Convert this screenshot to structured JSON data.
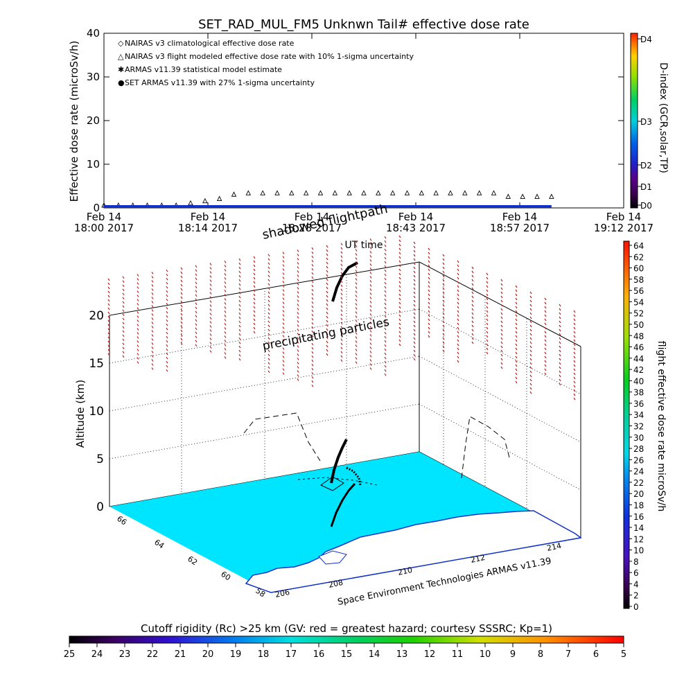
{
  "header": {
    "title": "SET_RAD_MUL_FM5 Unknwn Tail#  effective dose rate"
  },
  "top_chart": {
    "ylabel": "Effective dose rate (microSv/h)",
    "yticks": [
      "0",
      "10",
      "20",
      "30",
      "40"
    ],
    "xticks": [
      {
        "date": "Feb 14",
        "time": "18:00 2017"
      },
      {
        "date": "Feb 14",
        "time": "18:14 2017"
      },
      {
        "date": "Feb 14",
        "time": "18:28 2017"
      },
      {
        "date": "Feb 14",
        "time": "18:43 2017"
      },
      {
        "date": "Feb 14",
        "time": "18:57 2017"
      },
      {
        "date": "Feb 14",
        "time": "19:12 2017"
      }
    ],
    "legend": [
      {
        "symbol": "◇",
        "color": "#c0392b",
        "text": "NAIRAS v3 climatological effective dose rate"
      },
      {
        "symbol": "△",
        "color": "#000000",
        "text": "NAIRAS v3 flight modeled effective dose rate with 10% 1-sigma uncertainty"
      },
      {
        "symbol": "✱",
        "color": "#22c022",
        "text": "ARMAS v11.39 statistical model estimate"
      },
      {
        "symbol": "●",
        "color": "#1030c8",
        "text": "SET ARMAS v11.39 with 27% 1-sigma uncertainty"
      }
    ],
    "right_colorbar": {
      "label": "D-index (GCR,solar,TP)",
      "ticks": [
        "D4",
        "D3",
        "D2",
        "D1",
        "D0"
      ]
    }
  },
  "chart_data": [
    {
      "type": "scatter",
      "title": "SET_RAD_MUL_FM5 Unknwn Tail#  effective dose rate",
      "xlabel": "",
      "ylabel": "Effective dose rate (microSv/h)",
      "x_range": [
        "Feb 14 18:00 2017",
        "Feb 14 19:12 2017"
      ],
      "ylim": [
        0,
        40
      ],
      "series": [
        {
          "name": "NAIRAS v3 flight modeled effective dose rate with 10% 1-sigma uncertainty",
          "x_minutes": [
            0,
            2,
            4,
            6,
            8,
            10,
            12,
            14,
            16,
            18,
            20,
            22,
            24,
            26,
            28,
            30,
            32,
            34,
            36,
            38,
            40,
            42,
            44,
            46,
            48,
            50,
            52,
            54,
            56,
            58,
            60,
            62
          ],
          "values": [
            0,
            0,
            0,
            0,
            0,
            0,
            0.5,
            1,
            1.5,
            2.5,
            2.8,
            2.8,
            2.8,
            2.8,
            2.8,
            2.8,
            2.8,
            2.8,
            2.8,
            2.8,
            2.8,
            2.8,
            2.8,
            2.8,
            2.8,
            2.8,
            2.8,
            2.8,
            2,
            2,
            2,
            2
          ]
        },
        {
          "name": "SET ARMAS v11.39 with 27% 1-sigma uncertainty",
          "x_minutes": [
            0,
            62
          ],
          "values": [
            0,
            0
          ]
        }
      ]
    },
    {
      "type": "scatter",
      "title": "",
      "zlabel": "Altitude (km)",
      "zticks": [
        "0",
        "5",
        "10",
        "15",
        "20"
      ],
      "x_ticks": [
        "206",
        "208",
        "210",
        "212",
        "214"
      ],
      "y_ticks": [
        "58",
        "60",
        "62",
        "64",
        "66"
      ],
      "annotations": [
        "shadowed flightpath",
        "UT time",
        "precipitating particles"
      ]
    }
  ],
  "bottom_chart": {
    "ylabel": "Altitude (km)",
    "zticks": [
      "0",
      "5",
      "10",
      "15",
      "20"
    ],
    "xticks": [
      "206",
      "208",
      "210",
      "212",
      "214"
    ],
    "yticks": [
      "58",
      "60",
      "62",
      "64",
      "66"
    ],
    "annot_shadowed": "shadowed flightpath",
    "annot_ut": "UT time",
    "annot_precip": "precipitating particles",
    "credit": "Space Environment Technologies ARMAS v11.39",
    "right_colorbar": {
      "label": "flight effective dose rate microSv/h",
      "ticks": [
        "64",
        "62",
        "60",
        "58",
        "56",
        "54",
        "52",
        "50",
        "48",
        "46",
        "44",
        "42",
        "40",
        "38",
        "36",
        "34",
        "32",
        "30",
        "28",
        "26",
        "24",
        "22",
        "20",
        "18",
        "16",
        "14",
        "12",
        "10",
        "8",
        "6",
        "4",
        "2",
        "0"
      ]
    }
  },
  "cutoff_bar": {
    "title": "Cutoff rigidity (Rc) >25 km (GV: red = greatest hazard; courtesy SSSRC; Kp=1)",
    "ticks": [
      "25",
      "24",
      "23",
      "22",
      "21",
      "20",
      "19",
      "18",
      "17",
      "16",
      "15",
      "14",
      "13",
      "12",
      "11",
      "10",
      "9",
      "8",
      "7",
      "6",
      "5"
    ]
  },
  "colors": {
    "ocean": "#00e5ff",
    "land": "#ffffff",
    "coast": "#1030c8",
    "particles": "#b22222"
  }
}
